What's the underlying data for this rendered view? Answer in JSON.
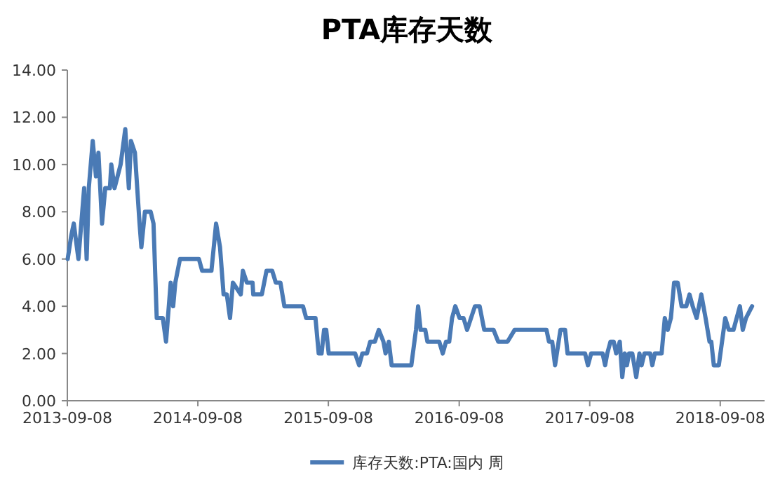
{
  "chart_data": {
    "type": "line",
    "title": "PTA库存天数",
    "x": [
      "2013-09-09",
      "2013-09-19",
      "2013-09-26",
      "2013-10-09",
      "2013-10-25",
      "2013-11-01",
      "2013-11-07",
      "2013-11-18",
      "2013-11-27",
      "2013-12-04",
      "2013-12-14",
      "2013-12-23",
      "2014-01-05",
      "2014-01-09",
      "2014-01-18",
      "2014-02-04",
      "2014-02-17",
      "2014-02-27",
      "2014-03-05",
      "2014-03-16",
      "2014-03-29",
      "2014-04-03",
      "2014-04-13",
      "2014-04-29",
      "2014-05-07",
      "2014-05-16",
      "2014-06-02",
      "2014-06-11",
      "2014-06-24",
      "2014-07-01",
      "2014-07-07",
      "2014-07-20",
      "2014-09-11",
      "2014-09-20",
      "2014-10-16",
      "2014-10-29",
      "2014-11-09",
      "2014-11-19",
      "2014-11-28",
      "2014-12-07",
      "2014-12-15",
      "2015-01-06",
      "2015-01-12",
      "2015-01-23",
      "2015-02-08",
      "2015-02-10",
      "2015-03-06",
      "2015-03-19",
      "2015-04-04",
      "2015-04-14",
      "2015-04-27",
      "2015-05-08",
      "2015-06-29",
      "2015-07-08",
      "2015-08-03",
      "2015-08-12",
      "2015-08-20",
      "2015-08-27",
      "2015-09-02",
      "2015-09-09",
      "2015-11-22",
      "2015-12-03",
      "2015-12-12",
      "2015-12-25",
      "2016-01-03",
      "2016-01-16",
      "2016-01-27",
      "2016-02-09",
      "2016-02-15",
      "2016-02-24",
      "2016-03-03",
      "2016-04-27",
      "2016-05-10",
      "2016-05-16",
      "2016-05-23",
      "2016-06-05",
      "2016-06-11",
      "2016-07-14",
      "2016-07-24",
      "2016-08-02",
      "2016-08-11",
      "2016-08-19",
      "2016-08-28",
      "2016-09-09",
      "2016-09-20",
      "2016-09-30",
      "2016-10-22",
      "2016-11-04",
      "2016-11-17",
      "2016-12-13",
      "2016-12-26",
      "2017-01-21",
      "2017-02-10",
      "2017-05-10",
      "2017-05-17",
      "2017-05-26",
      "2017-06-03",
      "2017-06-18",
      "2017-07-01",
      "2017-07-08",
      "2017-08-26",
      "2017-09-03",
      "2017-09-12",
      "2017-10-14",
      "2017-10-21",
      "2017-10-27",
      "2017-11-05",
      "2017-11-14",
      "2017-11-21",
      "2017-12-01",
      "2017-12-08",
      "2017-12-15",
      "2017-12-21",
      "2017-12-27",
      "2018-01-05",
      "2018-01-16",
      "2018-01-25",
      "2018-01-31",
      "2018-02-08",
      "2018-02-24",
      "2018-03-02",
      "2018-03-09",
      "2018-03-28",
      "2018-04-06",
      "2018-04-14",
      "2018-04-23",
      "2018-05-02",
      "2018-05-12",
      "2018-05-23",
      "2018-06-05",
      "2018-06-14",
      "2018-06-23",
      "2018-07-04",
      "2018-07-17",
      "2018-07-29",
      "2018-08-09",
      "2018-08-14",
      "2018-08-21",
      "2018-09-04",
      "2018-09-22",
      "2018-10-02",
      "2018-10-15",
      "2018-11-02",
      "2018-11-10",
      "2018-11-19",
      "2018-12-06"
    ],
    "series": [
      {
        "name": "库存天数:PTA:国内  周",
        "color": "#4a7ab5",
        "values": [
          6.0,
          7.0,
          7.5,
          6.0,
          9.0,
          6.0,
          9.0,
          11.0,
          9.5,
          10.5,
          7.5,
          9.0,
          9.0,
          10.0,
          9.0,
          10.0,
          11.5,
          9.0,
          11.0,
          10.5,
          7.5,
          6.5,
          8.0,
          8.0,
          7.5,
          3.5,
          3.5,
          2.5,
          5.0,
          4.0,
          5.0,
          6.0,
          6.0,
          5.5,
          5.5,
          7.5,
          6.5,
          4.5,
          4.5,
          3.5,
          5.0,
          4.5,
          5.5,
          5.0,
          5.0,
          4.5,
          4.5,
          5.5,
          5.5,
          5.0,
          5.0,
          4.0,
          4.0,
          3.5,
          3.5,
          2.0,
          2.0,
          3.0,
          3.0,
          2.0,
          2.0,
          1.5,
          2.0,
          2.0,
          2.5,
          2.5,
          3.0,
          2.5,
          2.0,
          2.5,
          1.5,
          1.5,
          3.0,
          4.0,
          3.0,
          3.0,
          2.5,
          2.5,
          2.0,
          2.5,
          2.5,
          3.5,
          4.0,
          3.5,
          3.5,
          3.0,
          4.0,
          4.0,
          3.0,
          3.0,
          2.5,
          2.5,
          3.0,
          3.0,
          2.5,
          2.5,
          1.5,
          3.0,
          3.0,
          2.0,
          2.0,
          1.5,
          2.0,
          2.0,
          1.5,
          2.0,
          2.5,
          2.5,
          2.0,
          2.5,
          1.0,
          2.0,
          1.5,
          2.0,
          2.0,
          1.0,
          2.0,
          1.5,
          2.0,
          2.0,
          1.5,
          2.0,
          2.0,
          3.5,
          3.0,
          3.5,
          5.0,
          5.0,
          4.0,
          4.0,
          4.5,
          4.0,
          3.5,
          4.5,
          3.5,
          2.5,
          2.5,
          1.5,
          1.5,
          3.5,
          3.0,
          3.0,
          4.0,
          3.0,
          3.5,
          4.0
        ]
      }
    ],
    "xlim": [
      "2013-09-08",
      "2019-01-10"
    ],
    "xticks": [
      "2013-09-08",
      "2014-09-08",
      "2015-09-08",
      "2016-09-08",
      "2017-09-08",
      "2018-09-08"
    ],
    "ylim": [
      0,
      14
    ],
    "yticks": [
      {
        "value": 0,
        "label": "0.00"
      },
      {
        "value": 2,
        "label": "2.00"
      },
      {
        "value": 4,
        "label": "4.00"
      },
      {
        "value": 6,
        "label": "6.00"
      },
      {
        "value": 8,
        "label": "8.00"
      },
      {
        "value": 10,
        "label": "10.00"
      },
      {
        "value": 12,
        "label": "12.00"
      },
      {
        "value": 14,
        "label": "14.00"
      }
    ],
    "grid": false,
    "legend": "bottom",
    "marker": "none",
    "line_style": "solid"
  }
}
